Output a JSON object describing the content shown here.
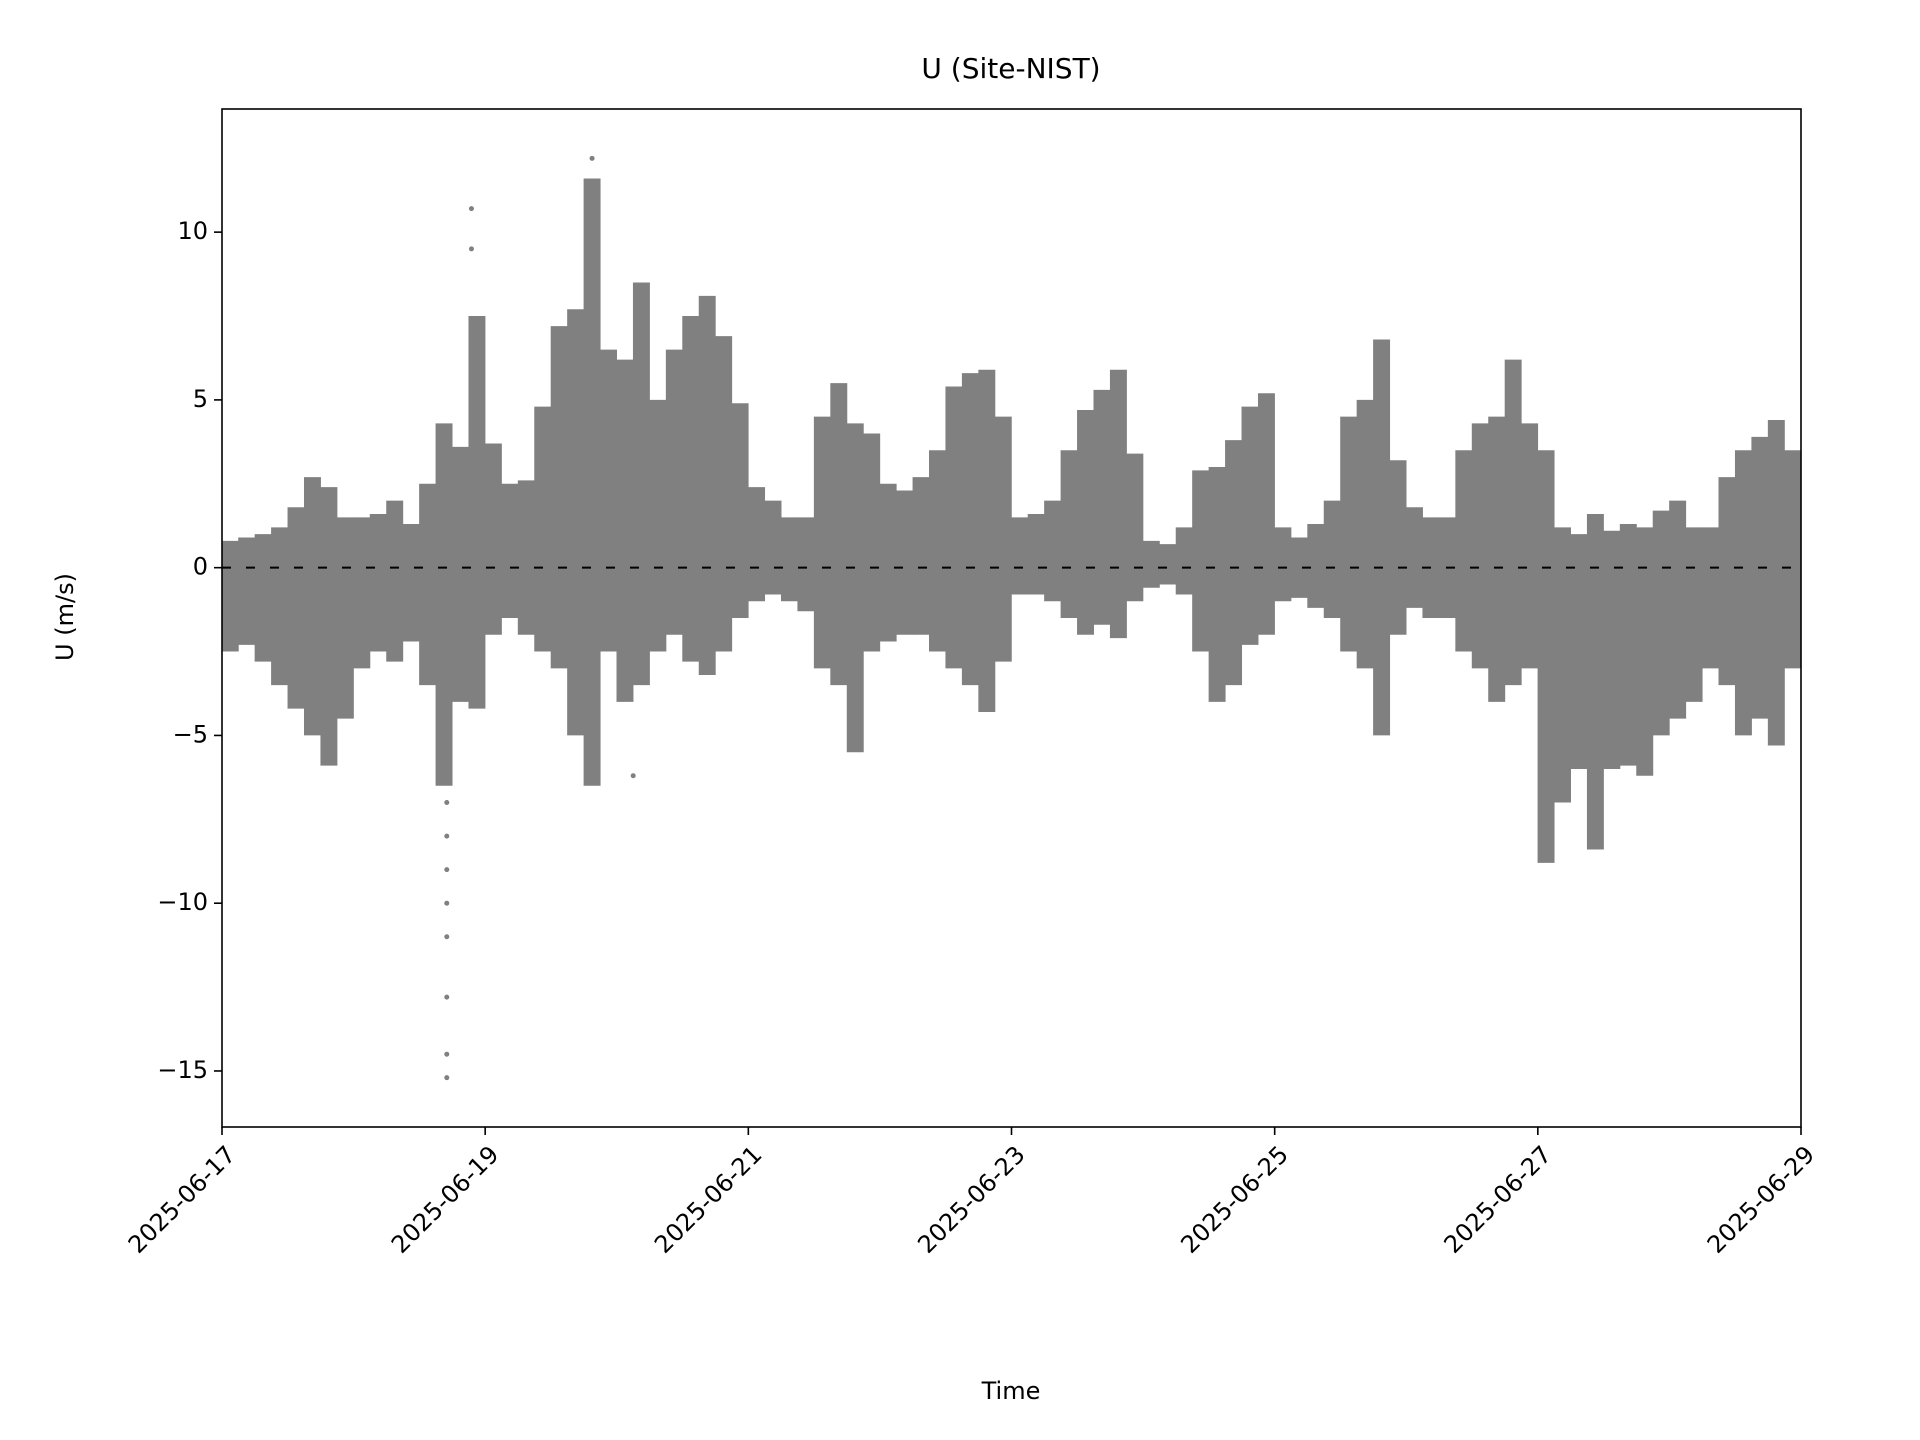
{
  "chart_data": {
    "type": "range",
    "title": "U (Site-NIST)",
    "x_label": "Time",
    "y_label": "U (m/s)",
    "color": "#808080",
    "xlim": [
      "2025-06-17",
      "2025-06-29"
    ],
    "xticks": [
      "2025-06-17",
      "2025-06-19",
      "2025-06-21",
      "2025-06-23",
      "2025-06-25",
      "2025-06-27",
      "2025-06-29"
    ],
    "ylim": [
      -16.67,
      13.67
    ],
    "yticks": [
      {
        "value": -15,
        "label": "−15"
      },
      {
        "value": -10,
        "label": "−10"
      },
      {
        "value": -5,
        "label": "−5"
      },
      0,
      5,
      10
    ],
    "hline": {
      "value": 0,
      "color": "#000000",
      "style": "dashed"
    },
    "x": [
      "2025-06-17T01:30",
      "2025-06-17T04:30",
      "2025-06-17T07:30",
      "2025-06-17T10:30",
      "2025-06-17T13:30",
      "2025-06-17T16:30",
      "2025-06-17T19:30",
      "2025-06-17T22:30",
      "2025-06-18T01:30",
      "2025-06-18T04:30",
      "2025-06-18T07:30",
      "2025-06-18T10:30",
      "2025-06-18T13:30",
      "2025-06-18T16:30",
      "2025-06-18T19:30",
      "2025-06-18T22:30",
      "2025-06-19T01:30",
      "2025-06-19T04:30",
      "2025-06-19T07:30",
      "2025-06-19T10:30",
      "2025-06-19T13:30",
      "2025-06-19T16:30",
      "2025-06-19T19:30",
      "2025-06-19T22:30",
      "2025-06-20T01:30",
      "2025-06-20T04:30",
      "2025-06-20T07:30",
      "2025-06-20T10:30",
      "2025-06-20T13:30",
      "2025-06-20T16:30",
      "2025-06-20T19:30",
      "2025-06-20T22:30",
      "2025-06-21T01:30",
      "2025-06-21T04:30",
      "2025-06-21T07:30",
      "2025-06-21T10:30",
      "2025-06-21T13:30",
      "2025-06-21T16:30",
      "2025-06-21T19:30",
      "2025-06-21T22:30",
      "2025-06-22T01:30",
      "2025-06-22T04:30",
      "2025-06-22T07:30",
      "2025-06-22T10:30",
      "2025-06-22T13:30",
      "2025-06-22T16:30",
      "2025-06-22T19:30",
      "2025-06-22T22:30",
      "2025-06-23T01:30",
      "2025-06-23T04:30",
      "2025-06-23T07:30",
      "2025-06-23T10:30",
      "2025-06-23T13:30",
      "2025-06-23T16:30",
      "2025-06-23T19:30",
      "2025-06-23T22:30",
      "2025-06-24T01:30",
      "2025-06-24T04:30",
      "2025-06-24T07:30",
      "2025-06-24T10:30",
      "2025-06-24T13:30",
      "2025-06-24T16:30",
      "2025-06-24T19:30",
      "2025-06-24T22:30",
      "2025-06-25T01:30",
      "2025-06-25T04:30",
      "2025-06-25T07:30",
      "2025-06-25T10:30",
      "2025-06-25T13:30",
      "2025-06-25T16:30",
      "2025-06-25T19:30",
      "2025-06-25T22:30",
      "2025-06-26T01:30",
      "2025-06-26T04:30",
      "2025-06-26T07:30",
      "2025-06-26T10:30",
      "2025-06-26T13:30",
      "2025-06-26T16:30",
      "2025-06-26T19:30",
      "2025-06-26T22:30",
      "2025-06-27T01:30",
      "2025-06-27T04:30",
      "2025-06-27T07:30",
      "2025-06-27T10:30",
      "2025-06-27T13:30",
      "2025-06-27T16:30",
      "2025-06-27T19:30",
      "2025-06-27T22:30",
      "2025-06-28T01:30",
      "2025-06-28T04:30",
      "2025-06-28T07:30",
      "2025-06-28T10:30",
      "2025-06-28T13:30",
      "2025-06-28T16:30",
      "2025-06-28T19:30",
      "2025-06-28T22:30"
    ],
    "values": [
      [
        -2.5,
        0.8
      ],
      [
        -2.3,
        0.9
      ],
      [
        -2.8,
        1
      ],
      [
        -3.5,
        1.2
      ],
      [
        -4.2,
        1.8
      ],
      [
        -5,
        2.7
      ],
      [
        -5.9,
        2.4
      ],
      [
        -4.5,
        1.5
      ],
      [
        -3,
        1.5
      ],
      [
        -2.5,
        1.6
      ],
      [
        -2.8,
        2
      ],
      [
        -2.2,
        1.3
      ],
      [
        -3.5,
        2.5
      ],
      [
        -6.5,
        4.3
      ],
      [
        -4,
        3.6
      ],
      [
        -4.2,
        7.5
      ],
      [
        -2,
        3.7
      ],
      [
        -1.5,
        2.5
      ],
      [
        -2,
        2.6
      ],
      [
        -2.5,
        4.8
      ],
      [
        -3,
        7.2
      ],
      [
        -5,
        7.7
      ],
      [
        -6.5,
        11.6
      ],
      [
        -2.5,
        6.5
      ],
      [
        -4,
        6.2
      ],
      [
        -3.5,
        8.5
      ],
      [
        -2.5,
        5
      ],
      [
        -2,
        6.5
      ],
      [
        -2.8,
        7.5
      ],
      [
        -3.2,
        8.1
      ],
      [
        -2.5,
        6.9
      ],
      [
        -1.5,
        4.9
      ],
      [
        -1,
        2.4
      ],
      [
        -0.8,
        2
      ],
      [
        -1,
        1.5
      ],
      [
        -1.3,
        1.5
      ],
      [
        -3,
        4.5
      ],
      [
        -3.5,
        5.5
      ],
      [
        -5.5,
        4.3
      ],
      [
        -2.5,
        4
      ],
      [
        -2.2,
        2.5
      ],
      [
        -2,
        2.3
      ],
      [
        -2,
        2.7
      ],
      [
        -2.5,
        3.5
      ],
      [
        -3,
        5.4
      ],
      [
        -3.5,
        5.8
      ],
      [
        -4.3,
        5.9
      ],
      [
        -2.8,
        4.5
      ],
      [
        -0.8,
        1.5
      ],
      [
        -0.8,
        1.6
      ],
      [
        -1,
        2
      ],
      [
        -1.5,
        3.5
      ],
      [
        -2,
        4.7
      ],
      [
        -1.7,
        5.3
      ],
      [
        -2.1,
        5.9
      ],
      [
        -1,
        3.4
      ],
      [
        -0.6,
        0.8
      ],
      [
        -0.5,
        0.7
      ],
      [
        -0.8,
        1.2
      ],
      [
        -2.5,
        2.9
      ],
      [
        -4,
        3
      ],
      [
        -3.5,
        3.8
      ],
      [
        -2.3,
        4.8
      ],
      [
        -2,
        5.2
      ],
      [
        -1,
        1.2
      ],
      [
        -0.9,
        0.9
      ],
      [
        -1.2,
        1.3
      ],
      [
        -1.5,
        2
      ],
      [
        -2.5,
        4.5
      ],
      [
        -3,
        5
      ],
      [
        -5,
        6.8
      ],
      [
        -2,
        3.2
      ],
      [
        -1.2,
        1.8
      ],
      [
        -1.5,
        1.5
      ],
      [
        -1.5,
        1.5
      ],
      [
        -2.5,
        3.5
      ],
      [
        -3,
        4.3
      ],
      [
        -4,
        4.5
      ],
      [
        -3.5,
        6.2
      ],
      [
        -3,
        4.3
      ],
      [
        -8.8,
        3.5
      ],
      [
        -7,
        1.2
      ],
      [
        -6,
        1
      ],
      [
        -8.4,
        1.6
      ],
      [
        -6,
        1.1
      ],
      [
        -5.9,
        1.3
      ],
      [
        -6.2,
        1.2
      ],
      [
        -5,
        1.7
      ],
      [
        -4.5,
        2
      ],
      [
        -4,
        1.2
      ],
      [
        -3,
        1.2
      ],
      [
        -3.5,
        2.7
      ],
      [
        -5,
        3.5
      ],
      [
        -4.5,
        3.9
      ],
      [
        -5.3,
        4.4
      ],
      [
        -3,
        3.5
      ]
    ],
    "outliers": {
      "x": [
        "2025-06-18T17:00",
        "2025-06-18T17:00",
        "2025-06-18T17:00",
        "2025-06-18T17:00",
        "2025-06-18T17:00",
        "2025-06-18T17:00",
        "2025-06-18T17:00",
        "2025-06-18T17:00",
        "2025-06-18T21:30",
        "2025-06-18T21:30",
        "2025-06-19T19:30",
        "2025-06-20T03:00"
      ],
      "values": [
        -15.2,
        -14.5,
        -12.8,
        -11,
        -10,
        -9,
        -8,
        -7,
        10.7,
        9.5,
        12.2,
        -6.2
      ]
    }
  }
}
